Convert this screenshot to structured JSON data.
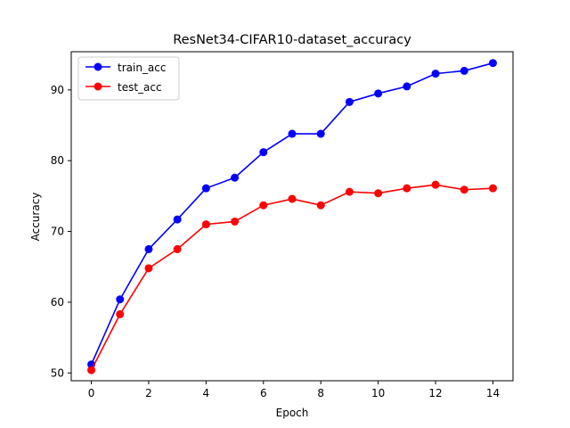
{
  "chart_data": {
    "type": "line",
    "title": "ResNet34-CIFAR10-dataset_accuracy",
    "xlabel": "Epoch",
    "ylabel": "Accuracy",
    "x": [
      0,
      1,
      2,
      3,
      4,
      5,
      6,
      7,
      8,
      9,
      10,
      11,
      12,
      13,
      14
    ],
    "xlim": [
      -0.7,
      14.7
    ],
    "ylim": [
      48.9,
      95.4
    ],
    "xticks": [
      0,
      2,
      4,
      6,
      8,
      10,
      12,
      14
    ],
    "yticks": [
      50,
      60,
      70,
      80,
      90
    ],
    "grid": false,
    "legend_position": "upper-left",
    "series": [
      {
        "name": "train_acc",
        "color": "#0000ff",
        "values": [
          51.2,
          60.4,
          67.5,
          71.7,
          76.1,
          77.6,
          81.2,
          83.8,
          83.8,
          88.3,
          89.5,
          90.5,
          92.3,
          92.7,
          93.8
        ]
      },
      {
        "name": "test_acc",
        "color": "#ff0000",
        "values": [
          50.4,
          58.3,
          64.8,
          67.5,
          71.0,
          71.4,
          73.7,
          74.6,
          73.7,
          75.6,
          75.4,
          76.1,
          76.6,
          75.9,
          76.1
        ]
      }
    ]
  }
}
